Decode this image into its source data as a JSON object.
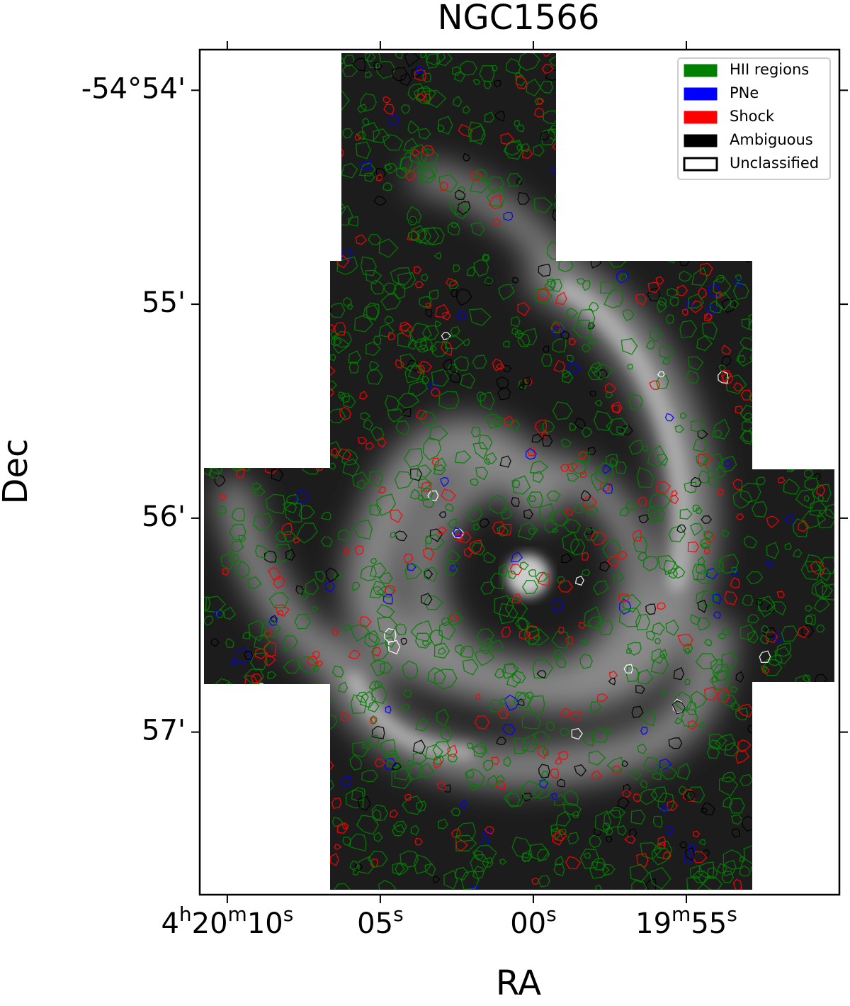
{
  "chart_data": {
    "type": "image",
    "title": "NGC1566",
    "xlabel": "RA",
    "ylabel": "Dec",
    "xlim": [
      15610.9,
      15590.0
    ],
    "xticks": [
      {
        "value": 15610,
        "label": "4h20m10s"
      },
      {
        "value": 15605,
        "label": "05s"
      },
      {
        "value": 15600,
        "label": "00s"
      },
      {
        "value": 15595,
        "label": "19m55s"
      }
    ],
    "ylim": [
      -3297.76,
      -3293.81
    ],
    "yticks": [
      {
        "value": -3294,
        "label": "-54°54'"
      },
      {
        "value": -3295,
        "label": "55'"
      },
      {
        "value": -3296,
        "label": "56'"
      },
      {
        "value": -3297,
        "label": "57'"
      }
    ],
    "legend_position": "upper right",
    "series": [
      {
        "name": "HII regions",
        "color": "#008000"
      },
      {
        "name": "PNe",
        "color": "#0000ff"
      },
      {
        "name": "Shock",
        "color": "#ff0000"
      },
      {
        "name": "Ambiguous",
        "color": "#000000"
      },
      {
        "name": "Unclassified",
        "color": "#ffffff"
      }
    ]
  }
}
